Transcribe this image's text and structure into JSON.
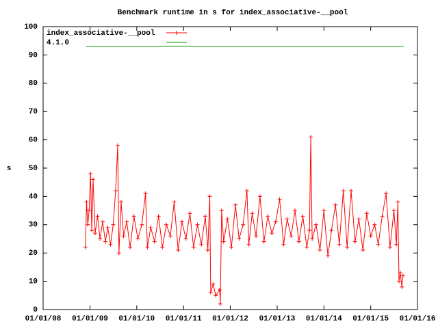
{
  "chart_data": {
    "type": "line",
    "title": "Benchmark runtime in s for index_associative-__pool",
    "y_label": "s",
    "xlim": [
      "2008-01-01",
      "2016-01-01"
    ],
    "xticks": [
      {
        "value": "2008-01-01",
        "label": "01/01/08"
      },
      {
        "value": "2009-01-01",
        "label": "01/01/09"
      },
      {
        "value": "2010-01-01",
        "label": "01/01/10"
      },
      {
        "value": "2011-01-01",
        "label": "01/01/11"
      },
      {
        "value": "2012-01-01",
        "label": "01/01/12"
      },
      {
        "value": "2013-01-01",
        "label": "01/01/13"
      },
      {
        "value": "2014-01-01",
        "label": "01/01/14"
      },
      {
        "value": "2015-01-01",
        "label": "01/01/15"
      },
      {
        "value": "2016-01-01",
        "label": "01/01/16"
      }
    ],
    "ylim": [
      0,
      100
    ],
    "yticks": [
      0,
      10,
      20,
      30,
      40,
      50,
      60,
      70,
      80,
      90,
      100
    ],
    "legend": "top-left",
    "series": [
      {
        "name": "index_associative-__pool",
        "color": "#ff0000",
        "marker": "+",
        "x": [
          "2008-11-26",
          "2008-12-05",
          "2008-12-15",
          "2008-12-25",
          "2009-01-05",
          "2009-01-15",
          "2009-01-25",
          "2009-02-10",
          "2009-03-01",
          "2009-03-20",
          "2009-04-10",
          "2009-05-01",
          "2009-05-20",
          "2009-06-10",
          "2009-07-01",
          "2009-07-20",
          "2009-08-05",
          "2009-08-15",
          "2009-09-01",
          "2009-09-20",
          "2009-10-15",
          "2009-11-10",
          "2009-12-10",
          "2010-01-10",
          "2010-02-10",
          "2010-03-10",
          "2010-03-25",
          "2010-04-20",
          "2010-05-20",
          "2010-06-20",
          "2010-07-20",
          "2010-08-20",
          "2010-09-20",
          "2010-10-20",
          "2010-11-20",
          "2010-12-20",
          "2011-01-20",
          "2011-02-20",
          "2011-03-20",
          "2011-04-20",
          "2011-05-20",
          "2011-06-20",
          "2011-07-10",
          "2011-07-25",
          "2011-08-01",
          "2011-08-20",
          "2011-09-10",
          "2011-10-10",
          "2011-10-15",
          "2011-10-25",
          "2011-11-10",
          "2011-12-10",
          "2012-01-10",
          "2012-02-10",
          "2012-03-10",
          "2012-04-10",
          "2012-05-10",
          "2012-05-25",
          "2012-06-20",
          "2012-07-20",
          "2012-08-20",
          "2012-09-20",
          "2012-10-20",
          "2012-11-20",
          "2012-12-20",
          "2013-01-20",
          "2013-02-20",
          "2013-03-20",
          "2013-04-20",
          "2013-05-20",
          "2013-06-20",
          "2013-07-20",
          "2013-08-20",
          "2013-09-10",
          "2013-09-20",
          "2013-10-01",
          "2013-11-01",
          "2013-12-01",
          "2014-01-01",
          "2014-02-01",
          "2014-03-01",
          "2014-04-01",
          "2014-05-01",
          "2014-06-01",
          "2014-07-01",
          "2014-08-01",
          "2014-09-01",
          "2014-10-01",
          "2014-11-01",
          "2014-12-01",
          "2015-01-01",
          "2015-02-01",
          "2015-03-01",
          "2015-04-01",
          "2015-05-01",
          "2015-06-01",
          "2015-07-01",
          "2015-07-20",
          "2015-08-01",
          "2015-08-10",
          "2015-08-20",
          "2015-09-01",
          "2015-09-10"
        ],
        "values": [
          22,
          38,
          30,
          35,
          48,
          28,
          46,
          27,
          33,
          25,
          31,
          24,
          29,
          23,
          30,
          42,
          58,
          20,
          38,
          26,
          31,
          22,
          33,
          25,
          30,
          41,
          22,
          29,
          24,
          33,
          22,
          30,
          26,
          38,
          21,
          31,
          25,
          34,
          22,
          30,
          23,
          33,
          21,
          40,
          6,
          9,
          5,
          7,
          2,
          35,
          24,
          32,
          22,
          37,
          25,
          30,
          42,
          23,
          34,
          26,
          40,
          24,
          33,
          27,
          31,
          39,
          23,
          32,
          26,
          35,
          24,
          33,
          22,
          28,
          61,
          25,
          30,
          21,
          35,
          19,
          28,
          37,
          23,
          42,
          22,
          42,
          24,
          32,
          21,
          34,
          26,
          30,
          23,
          33,
          41,
          22,
          35,
          23,
          38,
          10,
          13,
          8,
          12
        ]
      },
      {
        "name": "4.1.0",
        "color": "#00a000",
        "x": [
          "2008-12-01",
          "2015-09-15"
        ],
        "values": [
          93,
          93
        ]
      }
    ]
  }
}
